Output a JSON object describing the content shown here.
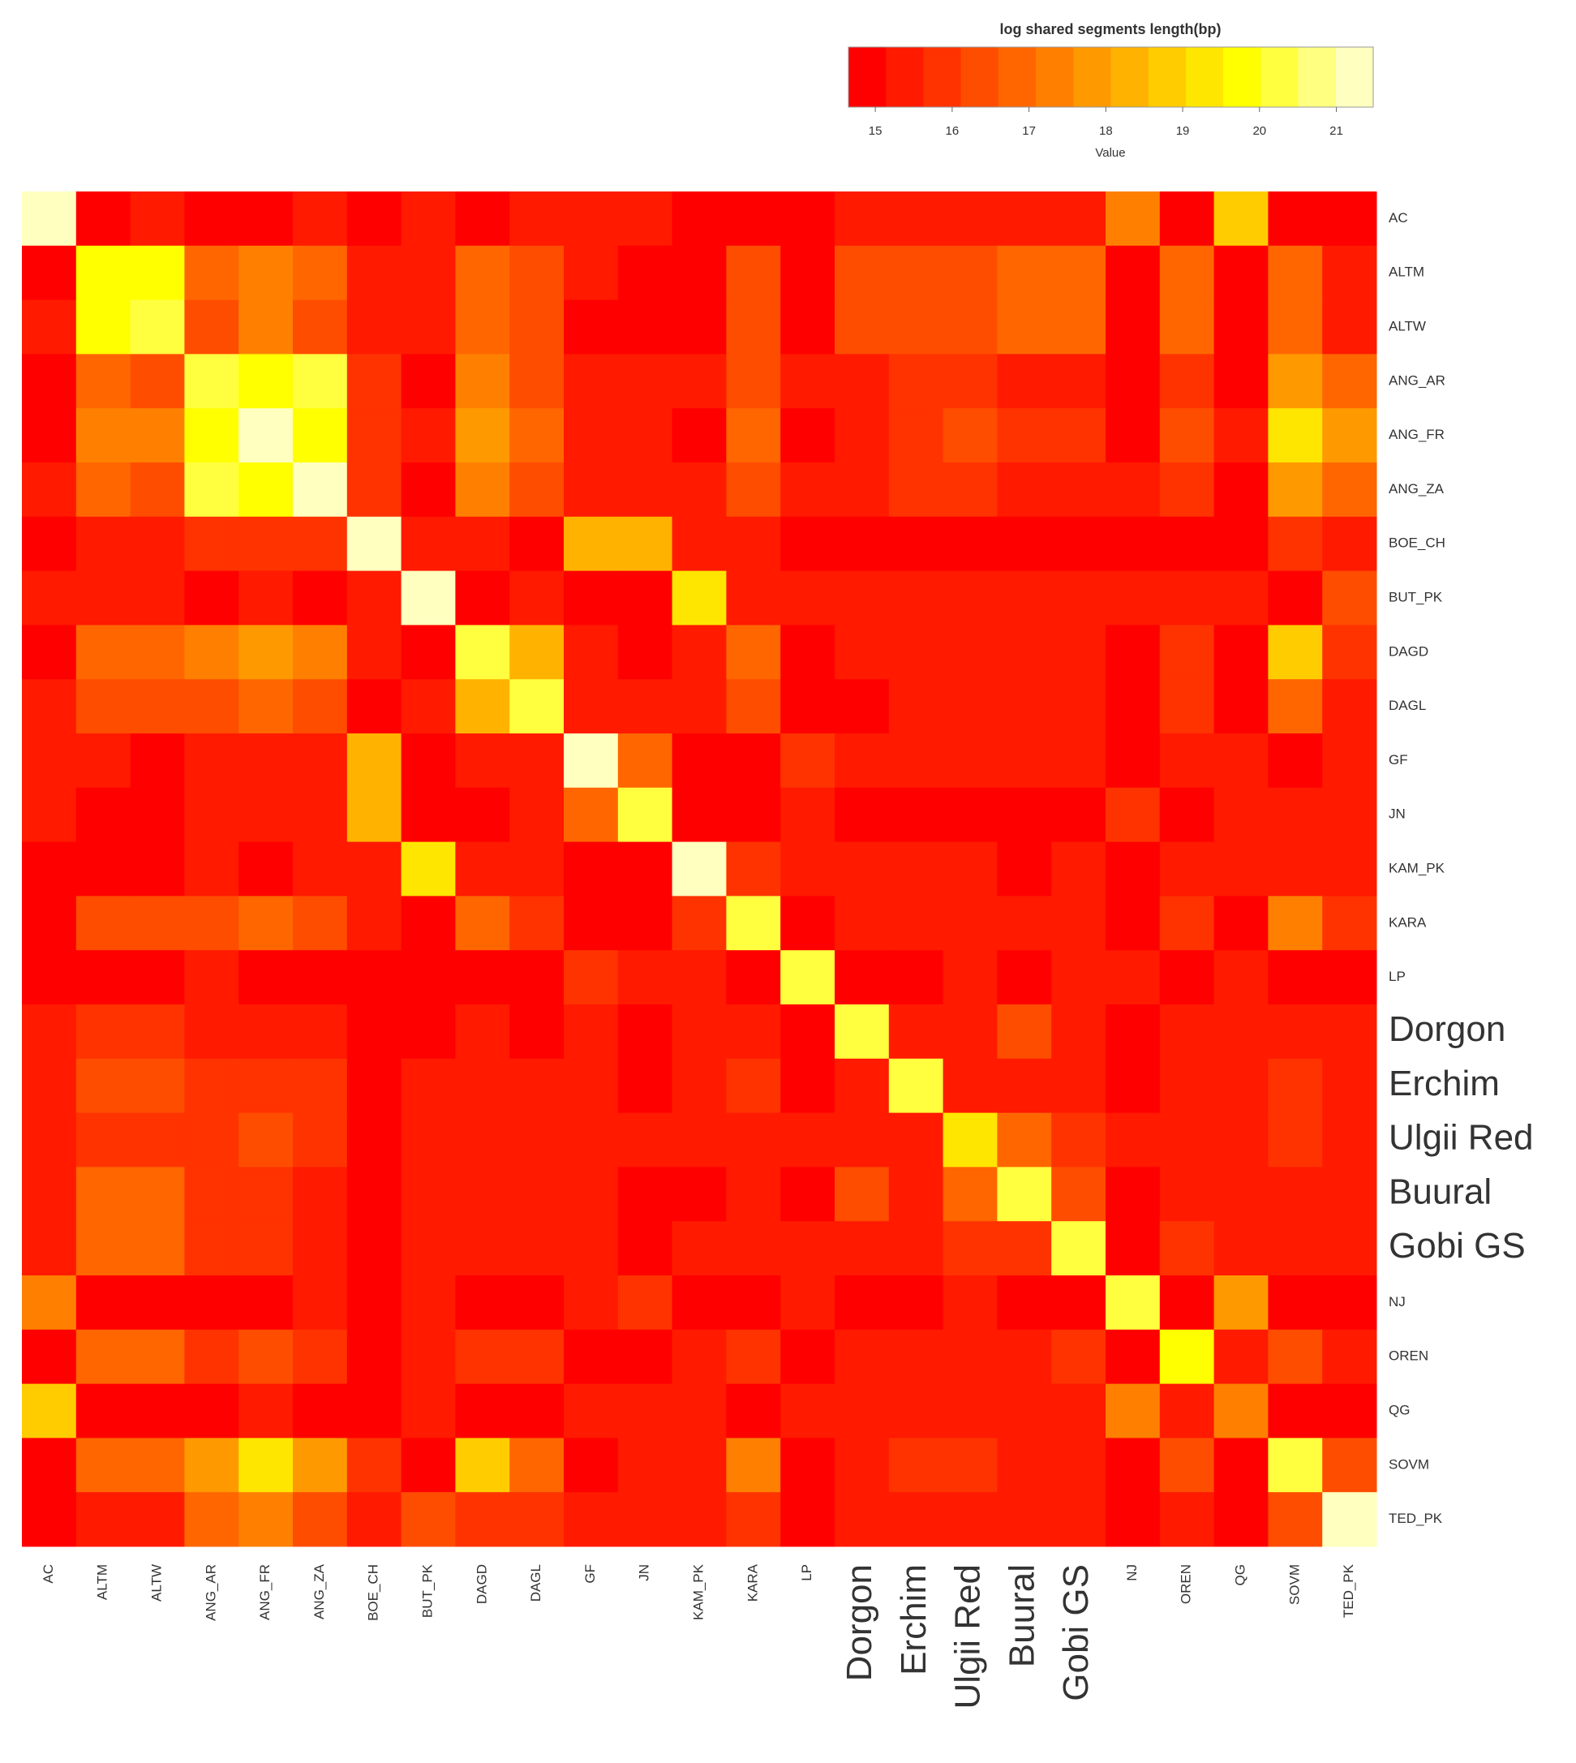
{
  "chart_data": {
    "type": "heatmap",
    "title": "log shared segments length(bp)",
    "colorbar_label": "Value",
    "labels": [
      "AC",
      "ALTM",
      "ALTW",
      "ANG_AR",
      "ANG_FR",
      "ANG_ZA",
      "BOE_CH",
      "BUT_PK",
      "DAGD",
      "DAGL",
      "GF",
      "JN",
      "KAM_PK",
      "KARA",
      "LP",
      "Dorgon",
      "Erchim",
      "Ulgii Red",
      "Buural",
      "Gobi GS",
      "NJ",
      "OREN",
      "QG",
      "SOVM",
      "TED_PK"
    ],
    "emphasized_indices": [
      15,
      16,
      17,
      18,
      19
    ],
    "zlim": [
      14.65,
      21.48
    ],
    "zticks": [
      15,
      16,
      17,
      18,
      19,
      20,
      21
    ],
    "colors": [
      "#ff0000",
      "#ff1a00",
      "#ff3300",
      "#ff4d00",
      "#ff6600",
      "#ff8000",
      "#ff9900",
      "#ffb300",
      "#ffcc00",
      "#ffe600",
      "#ffff00",
      "#ffff40",
      "#ffff80",
      "#ffffbf"
    ],
    "matrix": [
      [
        21,
        15,
        15.3,
        15,
        15,
        15.3,
        15,
        15.3,
        15,
        15.3,
        15.3,
        15.3,
        15,
        15,
        15,
        15.3,
        15.3,
        15.3,
        15.3,
        15.3,
        17.5,
        15,
        19,
        15,
        15
      ],
      [
        15,
        20,
        20,
        17,
        17.5,
        17,
        15.3,
        15.3,
        17,
        16.5,
        15.3,
        15,
        15,
        16.5,
        15,
        16.3,
        16.5,
        16.3,
        17,
        17,
        15,
        17,
        15,
        16.8,
        15.5
      ],
      [
        15.3,
        20,
        20.3,
        16.5,
        17.5,
        16.3,
        15.3,
        15.3,
        17,
        16.5,
        15,
        15,
        15,
        16.5,
        15,
        16.3,
        16.5,
        16.3,
        17,
        17,
        15,
        17,
        15,
        16.8,
        15.5
      ],
      [
        15,
        17,
        16.5,
        20.3,
        19.8,
        20.3,
        16,
        15,
        17.5,
        16.5,
        15.3,
        15.3,
        15.3,
        16.5,
        15.3,
        15.5,
        15.8,
        15.8,
        15.5,
        15.5,
        15,
        16,
        15,
        18,
        17
      ],
      [
        15,
        17.5,
        17.5,
        19.8,
        21,
        19.8,
        15.8,
        15.3,
        18,
        17,
        15.3,
        15.3,
        15,
        17,
        15,
        15.5,
        15.8,
        16.3,
        15.8,
        15.8,
        15,
        16.3,
        15.3,
        19.5,
        18
      ],
      [
        15.3,
        17,
        16.5,
        20.3,
        19.8,
        21.3,
        16,
        15,
        17.5,
        16.5,
        15.3,
        15.3,
        15.3,
        16.5,
        15.3,
        15.5,
        15.8,
        15.8,
        15.5,
        15.5,
        15.3,
        15.8,
        15,
        18,
        16.8
      ],
      [
        15,
        15.3,
        15.3,
        16,
        15.8,
        16,
        21,
        15.3,
        15.3,
        15,
        18.5,
        18.5,
        15.3,
        15.3,
        15,
        15,
        15,
        15,
        15,
        15,
        15,
        15,
        15,
        15.8,
        15.3
      ],
      [
        15.3,
        15.3,
        15.3,
        15,
        15.3,
        15,
        15.3,
        21.4,
        15,
        15.3,
        15,
        15,
        19.5,
        15.3,
        15.3,
        15.3,
        15.3,
        15.3,
        15.3,
        15.3,
        15.3,
        15.3,
        15.3,
        15,
        16.3
      ],
      [
        15,
        17,
        17,
        17.5,
        18,
        17.5,
        15.3,
        15,
        20.3,
        18.5,
        15.3,
        15,
        15.3,
        17,
        15,
        15.3,
        15.5,
        15.5,
        15.5,
        15.5,
        15,
        15.8,
        15,
        18.8,
        16
      ],
      [
        15.3,
        16.5,
        16.5,
        16.5,
        17,
        16.3,
        15,
        15.3,
        18.5,
        20.3,
        15.3,
        15.3,
        15.3,
        16.3,
        15,
        15,
        15.3,
        15.3,
        15.5,
        15.5,
        15,
        15.8,
        15,
        17,
        15.5
      ],
      [
        15.3,
        15.3,
        15,
        15.3,
        15.3,
        15.3,
        18.5,
        15,
        15.3,
        15.3,
        21,
        17,
        15,
        15,
        15.8,
        15.3,
        15.3,
        15.3,
        15.3,
        15.3,
        15,
        15.3,
        15.3,
        15,
        15.3
      ],
      [
        15.3,
        15,
        15,
        15.3,
        15.3,
        15.3,
        18.5,
        15,
        15,
        15.3,
        17,
        20.3,
        15,
        15,
        15.5,
        15,
        15,
        15,
        15,
        15,
        15.8,
        15,
        15.3,
        15.3,
        15.3
      ],
      [
        15,
        15,
        15,
        15.3,
        15,
        15.3,
        15.3,
        19.5,
        15.3,
        15.3,
        15,
        15,
        21.4,
        15.8,
        15.3,
        15.3,
        15.3,
        15.3,
        15,
        15.3,
        15,
        15.3,
        15.3,
        15.3,
        15.5
      ],
      [
        15,
        16.5,
        16.5,
        16.5,
        17,
        16.3,
        15.3,
        15,
        17,
        16,
        15,
        15,
        15.8,
        20.3,
        15,
        15.3,
        15.5,
        15.3,
        15.5,
        15.5,
        15,
        15.8,
        15,
        17.5,
        16
      ],
      [
        15,
        15,
        15,
        15.3,
        15,
        15,
        15,
        15,
        15,
        15,
        15.8,
        15.5,
        15.3,
        15,
        20.3,
        15,
        15,
        15.3,
        15,
        15.3,
        15.3,
        15,
        15.3,
        15,
        15
      ],
      [
        15.3,
        16,
        16,
        15.5,
        15.5,
        15.5,
        15,
        15,
        15.3,
        15,
        15.3,
        15,
        15.3,
        15.3,
        15,
        20.3,
        15.3,
        15.5,
        16.5,
        15.5,
        15,
        15.5,
        15.5,
        15.3,
        15.3
      ],
      [
        15.3,
        16.5,
        16.5,
        15.8,
        15.8,
        15.8,
        15,
        15.3,
        15.5,
        15.3,
        15.3,
        15,
        15.3,
        15.8,
        15,
        15.3,
        20.3,
        15.5,
        15.5,
        15.5,
        15,
        15.5,
        15.3,
        15.8,
        15.3
      ],
      [
        15.3,
        16,
        16,
        16,
        16.3,
        15.8,
        15,
        15.3,
        15.5,
        15.3,
        15.3,
        15.3,
        15.3,
        15.3,
        15.3,
        15.5,
        15.5,
        19.5,
        17,
        16,
        15.3,
        15.3,
        15.3,
        15.8,
        15.3
      ],
      [
        15.3,
        17,
        17,
        15.8,
        16,
        15.5,
        15,
        15.3,
        15.5,
        15.5,
        15.3,
        15,
        15,
        15.5,
        15,
        16.5,
        15.5,
        17,
        20.3,
        16.3,
        15,
        15.5,
        15.3,
        15.5,
        15.3
      ],
      [
        15.3,
        17,
        17,
        15.8,
        16,
        15.5,
        15,
        15.3,
        15.5,
        15.5,
        15.3,
        15,
        15.3,
        15.5,
        15.3,
        15.5,
        15.5,
        16,
        16,
        20.3,
        15,
        15.8,
        15.3,
        15.5,
        15.3
      ],
      [
        17.5,
        15,
        15,
        15,
        15,
        15.3,
        15,
        15.3,
        15,
        15,
        15.3,
        15.8,
        15,
        15,
        15.3,
        15,
        15,
        15.3,
        15,
        15,
        20.3,
        15,
        18,
        15,
        15
      ],
      [
        15,
        17,
        17,
        16,
        16.3,
        15.8,
        15,
        15.3,
        15.8,
        15.8,
        15,
        15,
        15.3,
        15.8,
        15,
        15.5,
        15.5,
        15.3,
        15.5,
        15.8,
        15,
        19.8,
        15.3,
        16.5,
        15.3
      ],
      [
        19,
        15,
        15,
        15,
        15.3,
        15,
        15,
        15.3,
        15,
        15,
        15.3,
        15.3,
        15.3,
        15,
        15.3,
        15.5,
        15.3,
        15.3,
        15.3,
        15.3,
        17.5,
        15.3,
        17.5,
        15,
        15
      ],
      [
        15,
        17,
        17,
        18,
        19.5,
        18,
        15.8,
        15,
        18.8,
        17,
        15,
        15.3,
        15.3,
        17.5,
        15,
        15.3,
        15.8,
        15.8,
        15.5,
        15.5,
        15,
        16.5,
        15,
        20.3,
        16.3
      ],
      [
        15,
        15.5,
        15.5,
        17,
        17.5,
        16.5,
        15.3,
        16.3,
        16,
        15.8,
        15.3,
        15.3,
        15.5,
        16,
        15,
        15.3,
        15.3,
        15.3,
        15.3,
        15.3,
        15,
        15.3,
        15,
        16.5,
        21
      ]
    ]
  }
}
